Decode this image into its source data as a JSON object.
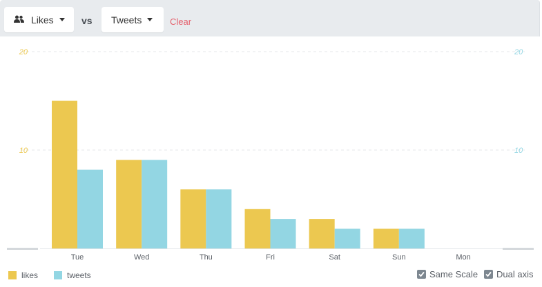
{
  "toolbar": {
    "metric_a": "Likes",
    "vs": "vs",
    "metric_b": "Tweets",
    "clear": "Clear"
  },
  "colors": {
    "likes": "#ecc850",
    "tweets": "#93d6e3",
    "grid": "#e5e7ea"
  },
  "chart_data": {
    "type": "bar",
    "categories": [
      "Tue",
      "Wed",
      "Thu",
      "Fri",
      "Sat",
      "Sun",
      "Mon"
    ],
    "series": [
      {
        "name": "likes",
        "values": [
          15,
          9,
          6,
          4,
          3,
          2,
          0
        ]
      },
      {
        "name": "tweets",
        "values": [
          8,
          9,
          6,
          3,
          2,
          2,
          0
        ]
      }
    ],
    "ylim": [
      0,
      20
    ],
    "left_ticks": [
      "20",
      "10"
    ],
    "right_ticks": [
      "20",
      "10"
    ],
    "dual_axis": true,
    "legend_position": "bottom-left"
  },
  "legend": {
    "likes": "likes",
    "tweets": "tweets"
  },
  "options": {
    "same_scale": "Same Scale",
    "dual_axis": "Dual axis"
  }
}
